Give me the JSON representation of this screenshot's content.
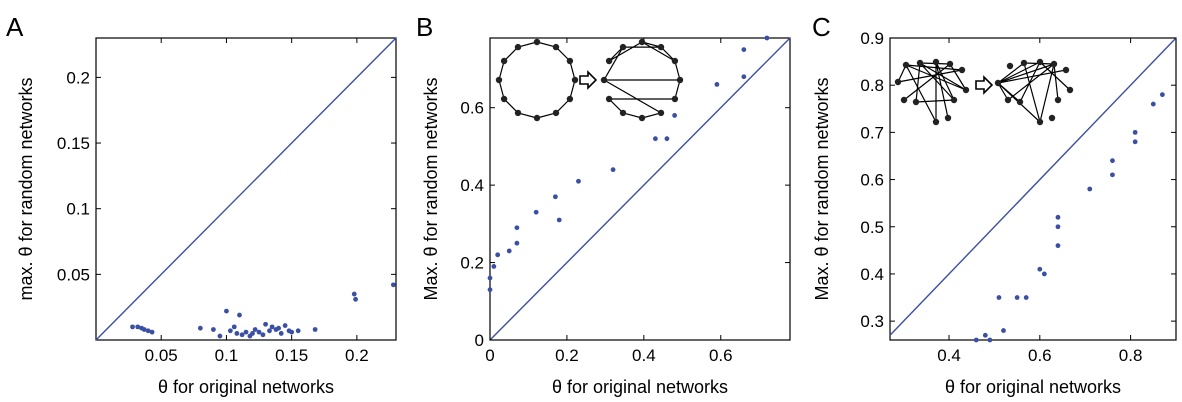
{
  "chart_data": [
    {
      "type": "scatter",
      "panel_label": "A",
      "xlabel": "θ for original networks",
      "ylabel": "max. θ for random networks",
      "xlim": [
        0,
        0.23
      ],
      "ylim": [
        0,
        0.23
      ],
      "xticks": [
        0.05,
        0.1,
        0.15,
        0.2
      ],
      "xtick_labels": [
        "0.05",
        "0.1",
        "0.15",
        "0.2"
      ],
      "yticks": [
        0.05,
        0.1,
        0.15,
        0.2
      ],
      "ytick_labels": [
        "0.05",
        "0.1",
        "0.15",
        "0.2"
      ],
      "diagonal": true,
      "points": [
        [
          0.028,
          0.01
        ],
        [
          0.032,
          0.01
        ],
        [
          0.035,
          0.009
        ],
        [
          0.037,
          0.008
        ],
        [
          0.04,
          0.007
        ],
        [
          0.043,
          0.006
        ],
        [
          0.08,
          0.009
        ],
        [
          0.09,
          0.008
        ],
        [
          0.095,
          0.003
        ],
        [
          0.1,
          0.022
        ],
        [
          0.103,
          0.007
        ],
        [
          0.106,
          0.01
        ],
        [
          0.108,
          0.005
        ],
        [
          0.11,
          0.019
        ],
        [
          0.112,
          0.004
        ],
        [
          0.115,
          0.006
        ],
        [
          0.118,
          0.003
        ],
        [
          0.12,
          0.005
        ],
        [
          0.122,
          0.008
        ],
        [
          0.125,
          0.006
        ],
        [
          0.128,
          0.004
        ],
        [
          0.13,
          0.012
        ],
        [
          0.133,
          0.007
        ],
        [
          0.135,
          0.01
        ],
        [
          0.138,
          0.008
        ],
        [
          0.14,
          0.009
        ],
        [
          0.142,
          0.005
        ],
        [
          0.145,
          0.011
        ],
        [
          0.148,
          0.007
        ],
        [
          0.15,
          0.006
        ],
        [
          0.155,
          0.007
        ],
        [
          0.168,
          0.008
        ],
        [
          0.198,
          0.035
        ],
        [
          0.199,
          0.031
        ],
        [
          0.228,
          0.042
        ]
      ]
    },
    {
      "type": "scatter",
      "panel_label": "B",
      "xlabel": "θ for original networks",
      "ylabel": "Max. θ for random networks",
      "xlim": [
        0,
        0.78
      ],
      "ylim": [
        0,
        0.78
      ],
      "xticks": [
        0,
        0.2,
        0.4,
        0.6
      ],
      "xtick_labels": [
        "0",
        "0.2",
        "0.4",
        "0.6"
      ],
      "yticks": [
        0,
        0.2,
        0.4,
        0.6
      ],
      "ytick_labels": [
        "0",
        "0.2",
        "0.4",
        "0.6"
      ],
      "diagonal": true,
      "points": [
        [
          0.0,
          0.13
        ],
        [
          0.0,
          0.16
        ],
        [
          0.01,
          0.19
        ],
        [
          0.02,
          0.22
        ],
        [
          0.05,
          0.23
        ],
        [
          0.07,
          0.25
        ],
        [
          0.07,
          0.29
        ],
        [
          0.12,
          0.33
        ],
        [
          0.17,
          0.37
        ],
        [
          0.18,
          0.31
        ],
        [
          0.23,
          0.41
        ],
        [
          0.32,
          0.44
        ],
        [
          0.43,
          0.52
        ],
        [
          0.46,
          0.52
        ],
        [
          0.48,
          0.58
        ],
        [
          0.59,
          0.66
        ],
        [
          0.66,
          0.68
        ],
        [
          0.66,
          0.75
        ],
        [
          0.72,
          0.78
        ]
      ]
    },
    {
      "type": "scatter",
      "panel_label": "C",
      "xlabel": "θ for original networks",
      "ylabel": "Max. θ for random networks",
      "xlim": [
        0.27,
        0.9
      ],
      "ylim": [
        0.26,
        0.9
      ],
      "xticks": [
        0.4,
        0.6,
        0.8
      ],
      "xtick_labels": [
        "0.4",
        "0.6",
        "0.8"
      ],
      "yticks": [
        0.3,
        0.4,
        0.5,
        0.6,
        0.7,
        0.8,
        0.9
      ],
      "ytick_labels": [
        "0.3",
        "0.4",
        "0.5",
        "0.6",
        "0.7",
        "0.8",
        "0.9"
      ],
      "diagonal": true,
      "points": [
        [
          0.46,
          0.26
        ],
        [
          0.48,
          0.27
        ],
        [
          0.49,
          0.26
        ],
        [
          0.51,
          0.35
        ],
        [
          0.52,
          0.28
        ],
        [
          0.55,
          0.35
        ],
        [
          0.57,
          0.35
        ],
        [
          0.6,
          0.41
        ],
        [
          0.61,
          0.4
        ],
        [
          0.64,
          0.46
        ],
        [
          0.64,
          0.5
        ],
        [
          0.64,
          0.52
        ],
        [
          0.71,
          0.58
        ],
        [
          0.76,
          0.61
        ],
        [
          0.76,
          0.64
        ],
        [
          0.81,
          0.68
        ],
        [
          0.81,
          0.7
        ],
        [
          0.85,
          0.76
        ],
        [
          0.87,
          0.78
        ]
      ]
    }
  ],
  "colors": {
    "series": "#3b4fa3",
    "axis": "#000000",
    "node": "#222222",
    "edge": "#000000"
  },
  "insets": {
    "B": {
      "description_icon": "ring-lattice-to-rewired-network"
    },
    "C": {
      "description_icon": "random-network-to-rewired-network"
    }
  }
}
